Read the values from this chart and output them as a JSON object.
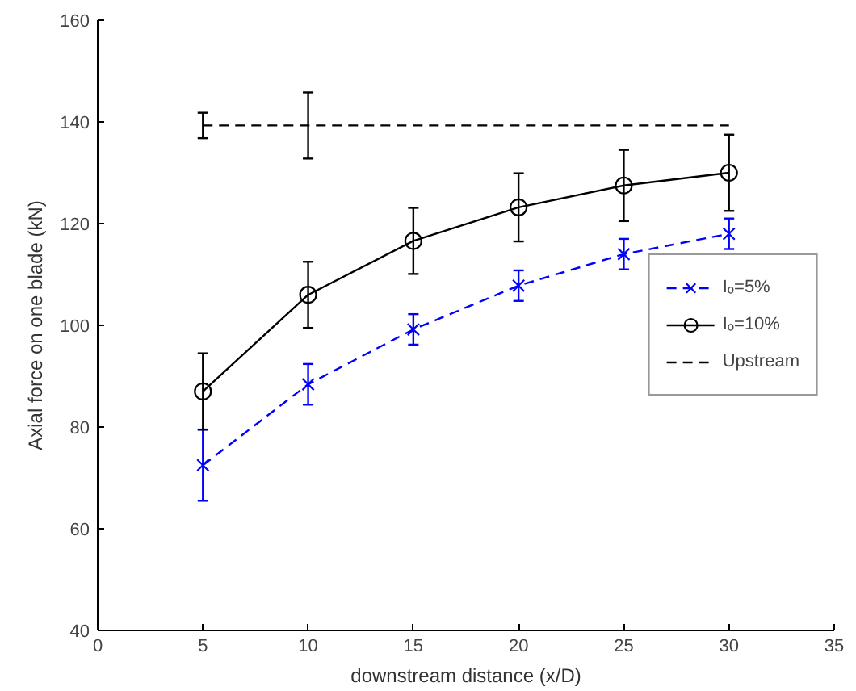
{
  "chart_data": {
    "type": "line",
    "xlabel": "downstream distance (x/D)",
    "ylabel": "Axial force on one blade (kN)",
    "x": [
      5,
      10,
      15,
      20,
      25,
      30
    ],
    "series": [
      {
        "name": "Iₒ=5%",
        "color": "#0000ff",
        "marker": "cross",
        "line_style": "dashed",
        "values": [
          72.5,
          88.4,
          99.2,
          107.8,
          114,
          118
        ],
        "errors": [
          7,
          4,
          3,
          3,
          3,
          3
        ]
      },
      {
        "name": "Iₒ=10%",
        "color": "#000000",
        "marker": "circle",
        "line_style": "solid",
        "values": [
          87,
          106,
          116.6,
          123.2,
          127.5,
          130
        ],
        "errors": [
          7.5,
          6.5,
          6.5,
          6.7,
          7,
          7.5
        ]
      },
      {
        "name": "Upstream",
        "color": "#000000",
        "marker": "none",
        "line_style": "dashed",
        "values": [
          139.3,
          139.3,
          139.3,
          139.3,
          139.3,
          139.3
        ],
        "errors": [
          2.5,
          6.5,
          null,
          null,
          null,
          null
        ]
      }
    ],
    "xlim": [
      0,
      35
    ],
    "xticks": [
      0,
      5,
      10,
      15,
      20,
      25,
      30,
      35
    ],
    "ylim": [
      40,
      160
    ],
    "yticks": [
      40,
      60,
      80,
      100,
      120,
      140,
      160
    ],
    "grid": false,
    "legend": "center right"
  }
}
